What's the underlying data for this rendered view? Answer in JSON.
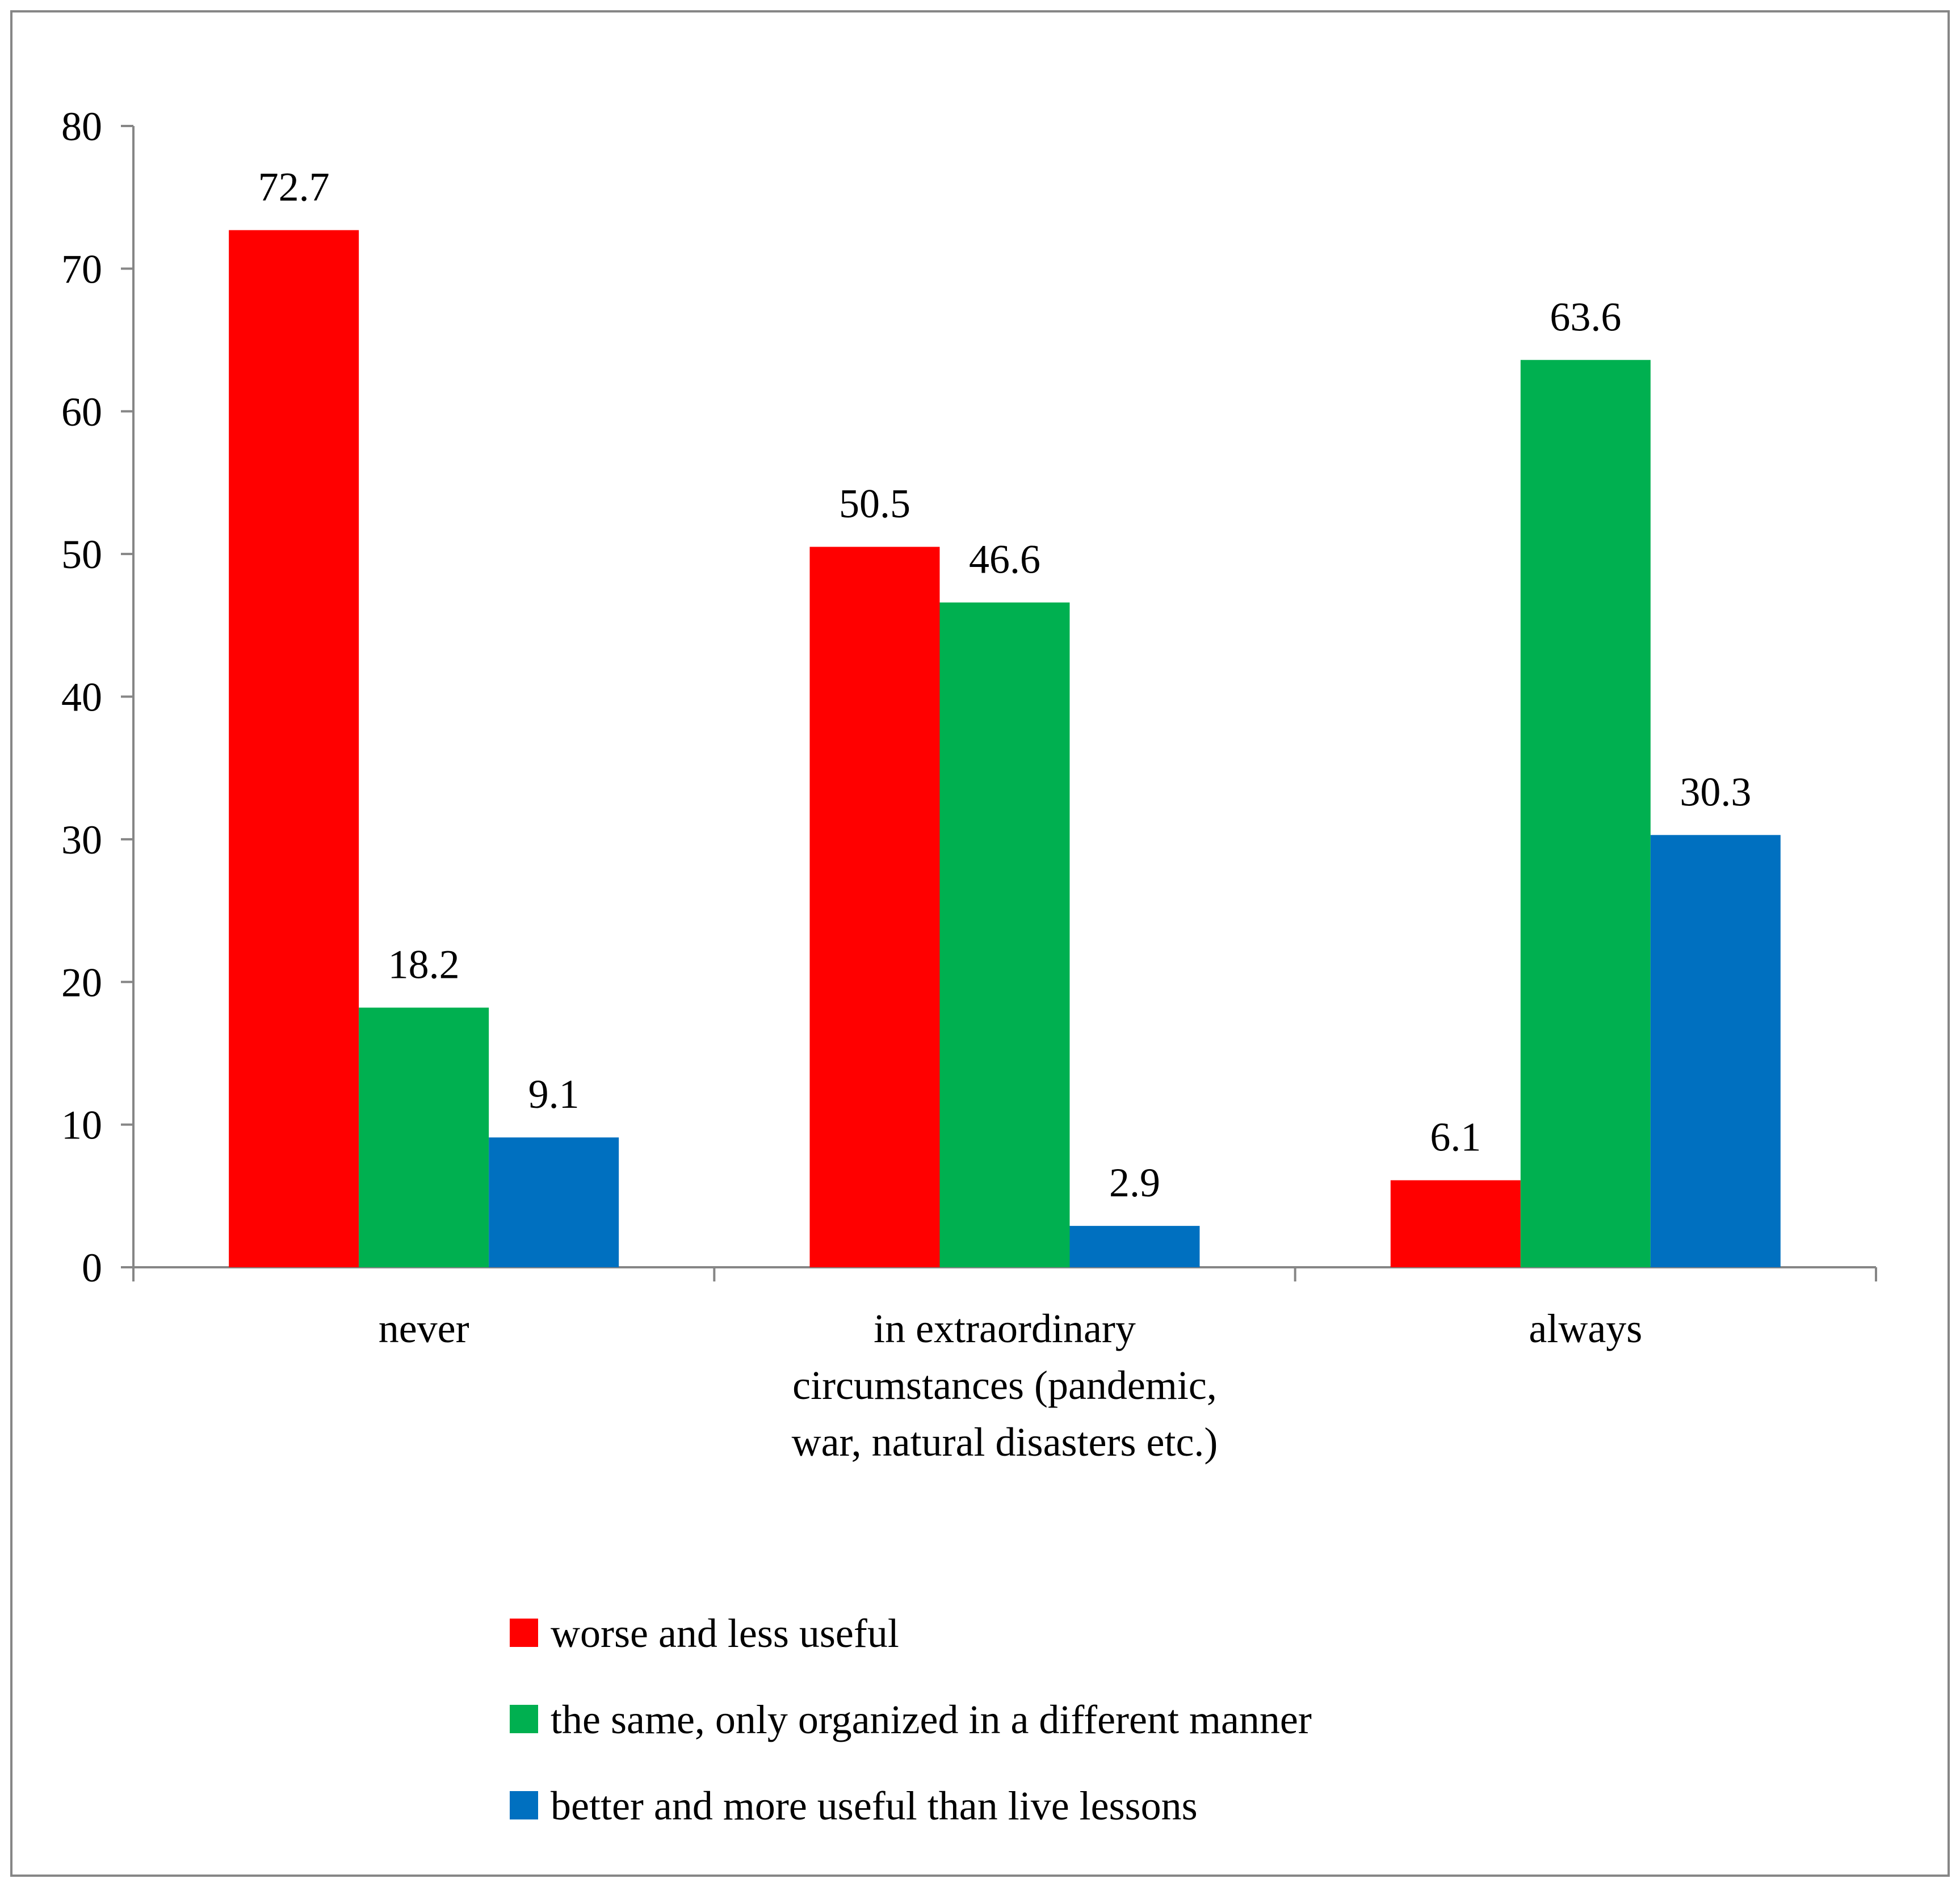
{
  "chart_data": {
    "type": "bar",
    "title": "",
    "xlabel": "",
    "ylabel": "",
    "ylim": [
      0,
      80
    ],
    "yticks": [
      0,
      10,
      20,
      30,
      40,
      50,
      60,
      70,
      80
    ],
    "grid": false,
    "legend_position": "bottom-center",
    "categories": [
      [
        "never"
      ],
      [
        "in extraordinary",
        "circumstances (pandemic,",
        "war, natural disasters etc.)"
      ],
      [
        "always"
      ]
    ],
    "series": [
      {
        "name": "worse and less useful",
        "color": "#FF0000",
        "values": [
          72.7,
          50.5,
          6.1
        ]
      },
      {
        "name": "the same, only organized in a different manner",
        "color": "#00B050",
        "values": [
          18.2,
          46.6,
          63.6
        ]
      },
      {
        "name": "better and more useful than live lessons",
        "color": "#0070C0",
        "values": [
          9.1,
          2.9,
          30.3
        ]
      }
    ]
  }
}
